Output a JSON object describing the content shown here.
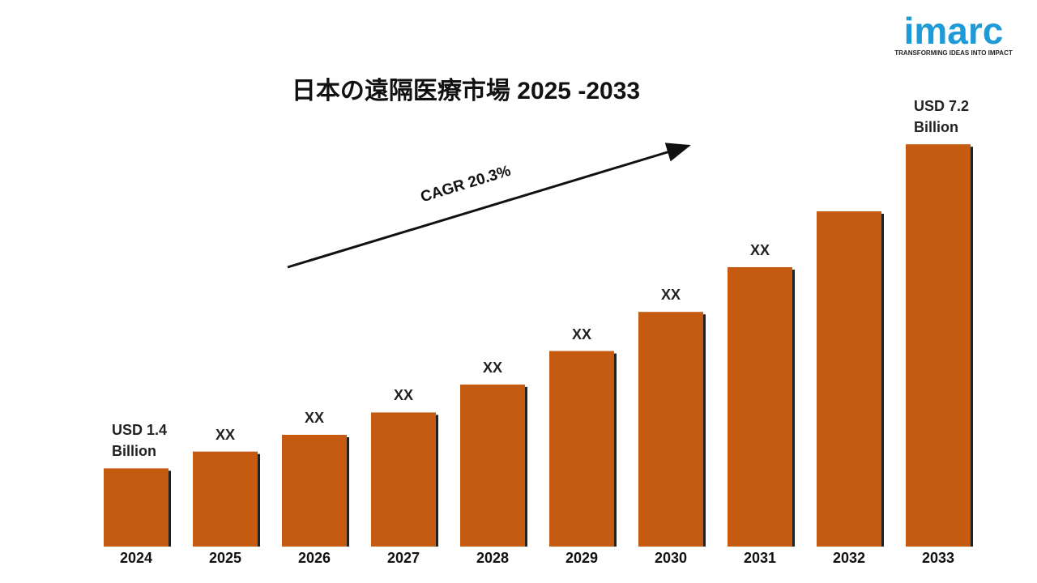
{
  "chart_data": {
    "type": "bar",
    "title": "日本の遠隔医療市場 2025 -2033",
    "annotation": "CAGR 20.3%",
    "categories": [
      "2024",
      "2025",
      "2026",
      "2027",
      "2028",
      "2029",
      "2030",
      "2031",
      "2032",
      "2033"
    ],
    "values": [
      1.4,
      1.7,
      2.0,
      2.4,
      2.9,
      3.5,
      4.2,
      5.0,
      6.0,
      7.2
    ],
    "value_labels": [
      "USD 1.4 Billion",
      "XX",
      "XX",
      "XX",
      "XX",
      "XX",
      "XX",
      "XX",
      null,
      "USD 7.2 Billion"
    ],
    "color": "#c55a11",
    "ylim": [
      0,
      8
    ]
  },
  "logo": {
    "name": "imarc",
    "tagline": "TRANSFORMING IDEAS INTO IMPACT"
  }
}
